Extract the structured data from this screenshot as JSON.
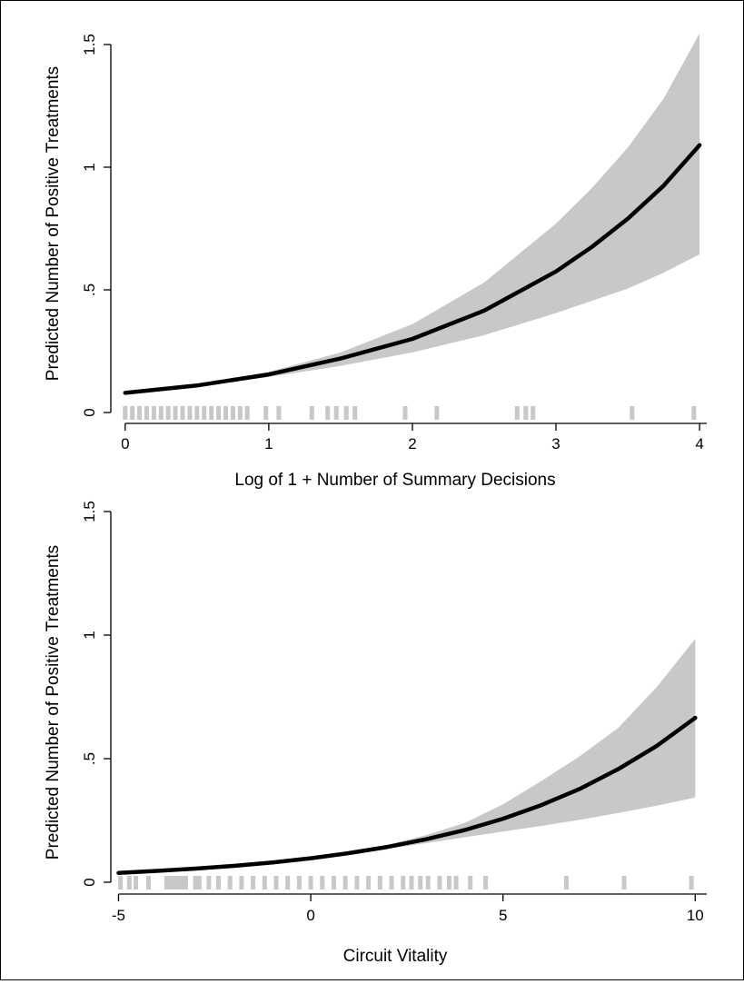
{
  "chart_data": [
    {
      "type": "line",
      "title": "",
      "xlabel": "Log of 1 + Number of Summary Decisions",
      "ylabel": "Predicted Number of Positive Treatments",
      "xlim": [
        -0.1,
        4.05
      ],
      "ylim": [
        0,
        1.5
      ],
      "xticks": [
        0,
        1,
        2,
        3,
        4
      ],
      "xtick_labels": [
        "0",
        "1",
        "2",
        "3",
        "4"
      ],
      "yticks": [
        0,
        0.5,
        1,
        1.5
      ],
      "ytick_labels": [
        "0",
        ".5",
        "1",
        "1.5"
      ],
      "grid": false,
      "series": [
        {
          "kind": "line",
          "x": [
            0,
            0.5,
            1,
            1.5,
            2,
            2.5,
            3,
            3.25,
            3.5,
            3.75,
            4
          ],
          "y": [
            0.08,
            0.11,
            0.155,
            0.22,
            0.3,
            0.415,
            0.575,
            0.675,
            0.79,
            0.925,
            1.09
          ],
          "color": "#000000"
        },
        {
          "kind": "band",
          "x": [
            0,
            0.5,
            1,
            1.5,
            2,
            2.5,
            3,
            3.25,
            3.5,
            3.75,
            4
          ],
          "lower": [
            0.075,
            0.105,
            0.145,
            0.19,
            0.245,
            0.315,
            0.405,
            0.455,
            0.505,
            0.57,
            0.645
          ],
          "upper": [
            0.085,
            0.115,
            0.165,
            0.245,
            0.36,
            0.53,
            0.77,
            0.915,
            1.08,
            1.28,
            1.545
          ],
          "color": "#c8c8c8"
        },
        {
          "kind": "rug",
          "x": [
            0,
            0.05,
            0.1,
            0.15,
            0.2,
            0.25,
            0.3,
            0.35,
            0.4,
            0.45,
            0.5,
            0.55,
            0.6,
            0.65,
            0.7,
            0.75,
            0.8,
            0.85,
            0.98,
            1.07,
            1.3,
            1.41,
            1.47,
            1.54,
            1.6,
            1.95,
            2.17,
            2.73,
            2.79,
            2.84,
            3.53,
            3.96
          ],
          "color": "#c8c8c8"
        }
      ]
    },
    {
      "type": "line",
      "title": "",
      "xlabel": "Circuit Vitality",
      "ylabel": "Predicted Number of Positive Treatments",
      "xlim": [
        -5.2,
        10.3
      ],
      "ylim": [
        0,
        1.5
      ],
      "xticks": [
        -5,
        0,
        5,
        10
      ],
      "xtick_labels": [
        "-5",
        "0",
        "5",
        "10"
      ],
      "yticks": [
        0,
        0.5,
        1,
        1.5
      ],
      "ytick_labels": [
        "0",
        ".5",
        "1",
        "1.5"
      ],
      "grid": false,
      "series": [
        {
          "kind": "line",
          "x": [
            -5,
            -4,
            -3,
            -2,
            -1,
            0,
            1,
            2,
            3,
            4,
            5,
            6,
            7,
            8,
            9,
            10
          ],
          "y": [
            0.038,
            0.046,
            0.055,
            0.066,
            0.08,
            0.097,
            0.118,
            0.143,
            0.174,
            0.211,
            0.257,
            0.312,
            0.378,
            0.458,
            0.552,
            0.665
          ],
          "color": "#000000"
        },
        {
          "kind": "band",
          "x": [
            -5,
            -4,
            -3,
            -2,
            -1,
            0,
            1,
            2,
            3,
            4,
            5,
            6,
            7,
            8,
            9,
            10
          ],
          "lower": [
            0.034,
            0.042,
            0.051,
            0.062,
            0.076,
            0.093,
            0.113,
            0.135,
            0.158,
            0.182,
            0.205,
            0.228,
            0.253,
            0.28,
            0.31,
            0.343
          ],
          "upper": [
            0.043,
            0.051,
            0.06,
            0.071,
            0.085,
            0.101,
            0.123,
            0.151,
            0.19,
            0.24,
            0.315,
            0.41,
            0.51,
            0.625,
            0.79,
            0.985
          ],
          "color": "#c8c8c8"
        },
        {
          "kind": "rug",
          "x": [
            -4.95,
            -4.72,
            -4.55,
            -4.22,
            -3.75,
            -3.65,
            -3.55,
            -3.45,
            -3.35,
            -3.25,
            -3.0,
            -2.9,
            -2.65,
            -2.4,
            -2.1,
            -1.8,
            -1.5,
            -1.2,
            -0.9,
            -0.6,
            -0.3,
            0.0,
            0.3,
            0.6,
            0.9,
            1.2,
            1.5,
            1.8,
            2.1,
            2.4,
            2.62,
            2.85,
            3.05,
            3.35,
            3.6,
            3.78,
            4.15,
            4.55,
            6.65,
            8.15,
            9.9
          ],
          "color": "#c8c8c8"
        }
      ]
    }
  ]
}
